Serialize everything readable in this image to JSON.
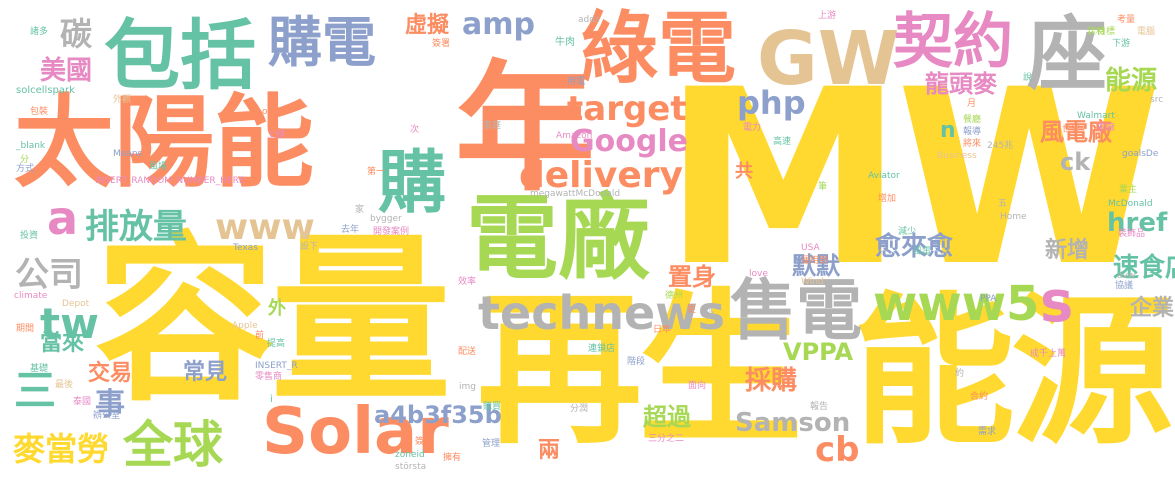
{
  "palette": {
    "yellow": "#ffd92f",
    "green": "#a6d854",
    "teal": "#66c2a5",
    "orange": "#fc8d62",
    "blue": "#8da0cb",
    "pink": "#e78ac3",
    "tan": "#e5c494",
    "gray": "#b3b3b3"
  },
  "words": [
    {
      "text": "MW",
      "color": "#ffd92f"
    },
    {
      "text": "容量",
      "color": "#ffd92f"
    },
    {
      "text": "再生",
      "color": "#ffd92f"
    },
    {
      "text": "能源",
      "color": "#ffd92f"
    },
    {
      "text": "太陽能",
      "color": "#fc8d62"
    },
    {
      "text": "年",
      "color": "#fc8d62"
    },
    {
      "text": "電廠",
      "color": "#a6d854"
    },
    {
      "text": "包括",
      "color": "#66c2a5"
    },
    {
      "text": "綠電",
      "color": "#fc8d62"
    },
    {
      "text": "GW",
      "color": "#e5c494"
    },
    {
      "text": "契約",
      "color": "#e78ac3"
    },
    {
      "text": "座",
      "color": "#b3b3b3"
    },
    {
      "text": "購電",
      "color": "#8da0cb"
    },
    {
      "text": "售電",
      "color": "#b3b3b3"
    },
    {
      "text": "Solar",
      "color": "#fc8d62"
    },
    {
      "text": "technews",
      "color": "#b3b3b3"
    },
    {
      "text": "www5",
      "color": "#a6d854"
    },
    {
      "text": "s",
      "color": "#e78ac3"
    },
    {
      "text": "全球",
      "color": "#a6d854"
    },
    {
      "text": "購",
      "color": "#66c2a5"
    },
    {
      "text": "a",
      "color": "#e78ac3"
    },
    {
      "text": "排放量",
      "color": "#66c2a5"
    },
    {
      "text": "target",
      "color": "#fc8d62"
    },
    {
      "text": "delivery",
      "color": "#fc8d62"
    },
    {
      "text": "amp",
      "color": "#8da0cb"
    },
    {
      "text": "php",
      "color": "#8da0cb"
    },
    {
      "text": "Google",
      "color": "#e78ac3"
    },
    {
      "text": "www",
      "color": "#e5c494"
    },
    {
      "text": "tw",
      "color": "#66c2a5"
    },
    {
      "text": "公司",
      "color": "#b3b3b3"
    },
    {
      "text": "碳",
      "color": "#b3b3b3"
    },
    {
      "text": "美國",
      "color": "#e78ac3"
    },
    {
      "text": "虛擬",
      "color": "#fc8d62"
    },
    {
      "text": "龍頭麥",
      "color": "#e78ac3"
    },
    {
      "text": "能源",
      "color": "#a6d854"
    },
    {
      "text": "風電廠",
      "color": "#fc8d62"
    },
    {
      "text": "n",
      "color": "#66c2a5"
    },
    {
      "text": "ck",
      "color": "#b3b3b3"
    },
    {
      "text": "href",
      "color": "#66c2a5"
    },
    {
      "text": "速食店",
      "color": "#66c2a5"
    },
    {
      "text": "企業",
      "color": "#b3b3b3"
    },
    {
      "text": "新增",
      "color": "#b3b3b3"
    },
    {
      "text": "愈來愈",
      "color": "#8da0cb"
    },
    {
      "text": "默默",
      "color": "#8da0cb"
    },
    {
      "text": "置身",
      "color": "#fc8d62"
    },
    {
      "text": "採購",
      "color": "#fc8d62"
    },
    {
      "text": "VPPA",
      "color": "#a6d854"
    },
    {
      "text": "Samson",
      "color": "#b3b3b3"
    },
    {
      "text": "cb",
      "color": "#fc8d62"
    },
    {
      "text": "a4b3f35b",
      "color": "#8da0cb"
    },
    {
      "text": "超過",
      "color": "#a6d854"
    },
    {
      "text": "兩",
      "color": "#fc8d62"
    },
    {
      "text": "麥當勞",
      "color": "#ffd92f"
    },
    {
      "text": "三",
      "color": "#66c2a5"
    },
    {
      "text": "當來",
      "color": "#66c2a5"
    },
    {
      "text": "事",
      "color": "#8da0cb"
    },
    {
      "text": "交易",
      "color": "#fc8d62"
    },
    {
      "text": "常見",
      "color": "#8da0cb"
    },
    {
      "text": "外",
      "color": "#a6d854"
    },
    {
      "text": "共",
      "color": "#fc8d62"
    },
    {
      "text": "adds",
      "color": "#b3b3b3"
    },
    {
      "text": "上游",
      "color": "#e78ac3"
    },
    {
      "text": "考量",
      "color": "#fc8d62"
    },
    {
      "text": "電腦",
      "color": "#e5c494"
    },
    {
      "text": "目標",
      "color": "#a6d854"
    },
    {
      "text": "下游",
      "color": "#66c2a5"
    },
    {
      "text": "牛肉",
      "color": "#66c2a5"
    },
    {
      "text": "本田",
      "color": "#fc8d62"
    },
    {
      "text": "用電",
      "color": "#8da0cb"
    },
    {
      "text": "家庭",
      "color": "#b3b3b3"
    },
    {
      "text": "Amazon",
      "color": "#e78ac3"
    },
    {
      "text": "電力",
      "color": "#e78ac3"
    },
    {
      "text": "高速",
      "color": "#66c2a5"
    },
    {
      "text": "Walmart",
      "color": "#66c2a5"
    },
    {
      "text": "車廠",
      "color": "#e78ac3"
    },
    {
      "text": "世界",
      "color": "#fc8d62"
    },
    {
      "text": "src",
      "color": "#b3b3b3"
    },
    {
      "text": "goalsDe",
      "color": "#8da0cb"
    },
    {
      "text": "Business",
      "color": "#e5c494"
    },
    {
      "text": "Aviator",
      "color": "#66c2a5"
    },
    {
      "text": "megawattMcDonald",
      "color": "#b3b3b3"
    },
    {
      "text": "bygger",
      "color": "#b3b3b3"
    },
    {
      "text": "INSERT_RANDOM_NUMBER_HERE",
      "color": "#e78ac3"
    },
    {
      "text": "Means",
      "color": "#8da0cb"
    },
    {
      "text": "solcellspark",
      "color": "#66c2a5"
    },
    {
      "text": "包裝",
      "color": "#fc8d62"
    },
    {
      "text": "_blank",
      "color": "#66c2a5"
    },
    {
      "text": "方式",
      "color": "#8da0cb"
    },
    {
      "text": "分",
      "color": "#a6d854"
    },
    {
      "text": "外觀",
      "color": "#e5c494"
    },
    {
      "text": "上線",
      "color": "#e78ac3"
    },
    {
      "text": "諸多",
      "color": "#66c2a5"
    },
    {
      "text": "簽署",
      "color": "#fc8d62"
    },
    {
      "text": "Texas",
      "color": "#8da0cb"
    },
    {
      "text": "Depot",
      "color": "#e5c494"
    },
    {
      "text": "Apple",
      "color": "#e5c494"
    },
    {
      "text": "INSERT_R",
      "color": "#8da0cb"
    },
    {
      "text": "零售商",
      "color": "#e78ac3"
    },
    {
      "text": "climate",
      "color": "#e78ac3"
    },
    {
      "text": "期間",
      "color": "#fc8d62"
    },
    {
      "text": "基礎",
      "color": "#66c2a5"
    },
    {
      "text": "最後",
      "color": "#e5c494"
    },
    {
      "text": "泰國",
      "color": "#e78ac3"
    },
    {
      "text": "辦公室",
      "color": "#8da0cb"
    },
    {
      "text": "效率",
      "color": "#e78ac3"
    },
    {
      "text": "日本",
      "color": "#fc8d62"
    },
    {
      "text": "德州",
      "color": "#a6d854"
    },
    {
      "text": "USA",
      "color": "#e78ac3"
    },
    {
      "text": "Wind",
      "color": "#e5c494"
    },
    {
      "text": "love",
      "color": "#e78ac3"
    },
    {
      "text": "PPA",
      "color": "#8da0cb"
    },
    {
      "text": "avw",
      "color": "#b3b3b3"
    },
    {
      "text": "協議",
      "color": "#8da0cb"
    },
    {
      "text": "McDonald",
      "color": "#66c2a5"
    },
    {
      "text": "Home",
      "color": "#b3b3b3"
    },
    {
      "text": "業主",
      "color": "#a6d854"
    },
    {
      "text": "建材",
      "color": "#a6d854"
    },
    {
      "text": "裝飾品",
      "color": "#e78ac3"
    },
    {
      "text": "245兆",
      "color": "#b3b3b3"
    },
    {
      "text": "將來",
      "color": "#fc8d62"
    },
    {
      "text": "報導",
      "color": "#8da0cb"
    },
    {
      "text": "餐廳",
      "color": "#a6d854"
    },
    {
      "text": "增加",
      "color": "#fc8d62"
    },
    {
      "text": "減少",
      "color": "#66c2a5"
    },
    {
      "text": "風電",
      "color": "#66c2a5"
    },
    {
      "text": "運用到",
      "color": "#fc8d62"
    },
    {
      "text": "成千上萬",
      "color": "#e78ac3"
    },
    {
      "text": "合約",
      "color": "#fc8d62"
    },
    {
      "text": "約",
      "color": "#b3b3b3"
    },
    {
      "text": "需求",
      "color": "#8da0cb"
    },
    {
      "text": "報告",
      "color": "#b3b3b3"
    },
    {
      "text": "面向",
      "color": "#e78ac3"
    },
    {
      "text": "階段",
      "color": "#8da0cb"
    },
    {
      "text": "連鎖店",
      "color": "#66c2a5"
    },
    {
      "text": "配送",
      "color": "#fc8d62"
    },
    {
      "text": "img",
      "color": "#b3b3b3"
    },
    {
      "text": "分潤",
      "color": "#b3b3b3"
    },
    {
      "text": "三分之二",
      "color": "#e78ac3"
    },
    {
      "text": "管理",
      "color": "#8da0cb"
    },
    {
      "text": "擁有",
      "color": "#fc8d62"
    },
    {
      "text": "största",
      "color": "#b3b3b3"
    },
    {
      "text": "zoneid",
      "color": "#66c2a5"
    },
    {
      "text": "簽下",
      "color": "#fc8d62"
    },
    {
      "text": "購買",
      "color": "#66c2a5"
    },
    {
      "text": "開發案例",
      "color": "#e78ac3"
    },
    {
      "text": "去年",
      "color": "#8da0cb"
    },
    {
      "text": "設下",
      "color": "#b3b3b3"
    },
    {
      "text": "提高",
      "color": "#66c2a5"
    },
    {
      "text": "前",
      "color": "#fc8d62"
    },
    {
      "text": "第一",
      "color": "#fc8d62"
    },
    {
      "text": "風場",
      "color": "#66c2a5"
    },
    {
      "text": "筆",
      "color": "#a6d854"
    },
    {
      "text": "五",
      "color": "#b3b3b3"
    },
    {
      "text": "家",
      "color": "#b3b3b3"
    },
    {
      "text": "投資",
      "color": "#66c2a5"
    },
    {
      "text": "更",
      "color": "#fc8d62"
    },
    {
      "text": "瓦",
      "color": "#b3b3b3"
    },
    {
      "text": "次",
      "color": "#e78ac3"
    },
    {
      "text": "說",
      "color": "#66c2a5"
    },
    {
      "text": "月",
      "color": "#fc8d62"
    },
    {
      "text": "om",
      "color": "#fc8d62"
    },
    {
      "text": "i",
      "color": "#66c2a5"
    }
  ]
}
